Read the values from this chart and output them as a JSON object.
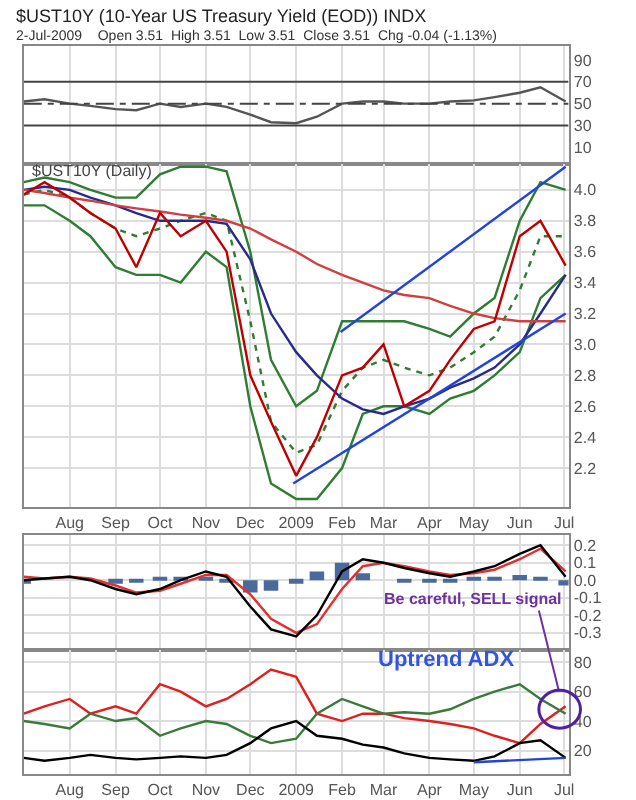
{
  "chart_data": [
    {
      "type": "line",
      "title": "$UST10Y (10-Year US Treasury Yield (EOD)) INDX",
      "subtitle": "2-Jul-2009    Open 3.51  High 3.51  Low 3.51  Close 3.51  Chg -0.04 (-1.13%)",
      "x": [
        "2008-07-01",
        "2008-07-15",
        "2008-08-01",
        "2008-08-15",
        "2008-09-01",
        "2008-09-15",
        "2008-10-01",
        "2008-10-15",
        "2008-11-01",
        "2008-11-15",
        "2008-12-01",
        "2008-12-15",
        "2009-01-01",
        "2009-01-15",
        "2009-02-01",
        "2009-02-15",
        "2009-03-01",
        "2009-03-15",
        "2009-04-01",
        "2009-04-15",
        "2009-05-01",
        "2009-05-15",
        "2009-06-01",
        "2009-06-15",
        "2009-07-02"
      ],
      "series": [
        {
          "color": "#555555",
          "values": [
            52,
            54,
            50,
            48,
            45,
            44,
            50,
            47,
            50,
            47,
            40,
            33,
            32,
            38,
            50,
            52,
            52,
            50,
            50,
            52,
            53,
            56,
            60,
            65,
            52
          ]
        }
      ],
      "xlim": [
        "2008-07-01",
        "2009-07-04"
      ],
      "xticks": [
        {
          "value": "2008-08-01",
          "label": null
        },
        {
          "value": "2008-09-01",
          "label": null
        },
        {
          "value": "2008-10-01",
          "label": null
        },
        {
          "value": "2008-11-01",
          "label": null
        },
        {
          "value": "2008-12-01",
          "label": null
        },
        {
          "value": "2009-01-01",
          "label": null
        },
        {
          "value": "2009-02-01",
          "label": null
        },
        {
          "value": "2009-03-01",
          "label": null
        },
        {
          "value": "2009-04-01",
          "label": null
        },
        {
          "value": "2009-05-01",
          "label": null
        },
        {
          "value": "2009-06-01",
          "label": null
        },
        {
          "value": "2009-07-01",
          "label": null
        }
      ],
      "ylim": [
        -5,
        103
      ],
      "yticks": [
        10,
        30,
        50,
        70,
        90
      ],
      "ref_lines": [
        {
          "axis": "y",
          "value": 70,
          "color": "#444444"
        },
        {
          "axis": "y",
          "value": 30,
          "color": "#444444"
        },
        {
          "axis": "y",
          "value": 50,
          "color": "#444444",
          "line_style": "dashed"
        }
      ],
      "tick_labels": "y",
      "grid": "x"
    },
    {
      "type": "line",
      "annotations": [
        "$UST10Y (Daily)"
      ],
      "x": [
        "2008-07-01",
        "2008-07-15",
        "2008-08-01",
        "2008-08-15",
        "2008-09-01",
        "2008-09-15",
        "2008-10-01",
        "2008-10-15",
        "2008-11-01",
        "2008-11-15",
        "2008-12-01",
        "2008-12-15",
        "2009-01-01",
        "2009-01-15",
        "2009-02-01",
        "2009-02-15",
        "2009-03-01",
        "2009-03-15",
        "2009-04-01",
        "2009-04-15",
        "2009-05-01",
        "2009-05-15",
        "2009-06-01",
        "2009-06-15",
        "2009-07-02"
      ],
      "series": [
        {
          "color": "#2e7d32",
          "values": [
            4.05,
            4.08,
            4.05,
            4.0,
            3.95,
            3.95,
            4.1,
            4.15,
            4.15,
            4.12,
            3.6,
            2.9,
            2.6,
            2.7,
            3.15,
            3.15,
            3.15,
            3.15,
            3.1,
            3.05,
            3.2,
            3.3,
            3.8,
            4.05,
            4.0
          ]
        },
        {
          "color": "#2e7d32",
          "values": [
            3.9,
            3.9,
            3.8,
            3.7,
            3.5,
            3.45,
            3.45,
            3.4,
            3.6,
            3.5,
            2.6,
            2.1,
            2.0,
            2.0,
            2.2,
            2.55,
            2.6,
            2.6,
            2.55,
            2.65,
            2.7,
            2.8,
            2.95,
            3.3,
            3.45
          ]
        },
        {
          "color": "#2e7d32",
          "line_style": "dotted",
          "values": [
            3.97,
            4.0,
            3.95,
            3.85,
            3.75,
            3.7,
            3.75,
            3.8,
            3.85,
            3.8,
            3.15,
            2.5,
            2.3,
            2.35,
            2.7,
            2.85,
            2.9,
            2.85,
            2.8,
            2.85,
            2.95,
            3.05,
            3.35,
            3.7,
            3.7
          ]
        },
        {
          "color": "#2a2a8c",
          "values": [
            4.0,
            4.02,
            4.0,
            3.95,
            3.9,
            3.85,
            3.8,
            3.8,
            3.8,
            3.78,
            3.55,
            3.2,
            2.95,
            2.8,
            2.65,
            2.58,
            2.55,
            2.6,
            2.65,
            2.72,
            2.78,
            2.85,
            3.0,
            3.2,
            3.45
          ]
        },
        {
          "color": "#d04040",
          "values": [
            4.0,
            3.98,
            3.95,
            3.93,
            3.9,
            3.88,
            3.86,
            3.84,
            3.82,
            3.8,
            3.75,
            3.68,
            3.6,
            3.52,
            3.45,
            3.4,
            3.35,
            3.32,
            3.3,
            3.25,
            3.2,
            3.17,
            3.15,
            3.15,
            3.15
          ]
        },
        {
          "color": "#c00000",
          "values": [
            3.97,
            4.05,
            3.95,
            3.85,
            3.75,
            3.5,
            3.85,
            3.7,
            3.8,
            3.6,
            2.8,
            2.5,
            2.15,
            2.4,
            2.8,
            2.85,
            3.0,
            2.6,
            2.7,
            2.9,
            3.1,
            3.15,
            3.7,
            3.8,
            3.51
          ]
        },
        {
          "color": "#2244dd",
          "x": [
            "2009-01-31",
            "2009-07-02"
          ],
          "values": [
            3.08,
            4.15
          ]
        },
        {
          "color": "#2244dd",
          "x": [
            "2008-12-30",
            "2009-07-02"
          ],
          "values": [
            2.1,
            3.2
          ]
        }
      ],
      "xlim": [
        "2008-07-01",
        "2009-07-04"
      ],
      "xticks": [
        {
          "value": "2008-08-01",
          "label": "Aug"
        },
        {
          "value": "2008-09-01",
          "label": "Sep"
        },
        {
          "value": "2008-10-01",
          "label": "Oct"
        },
        {
          "value": "2008-11-01",
          "label": "Nov"
        },
        {
          "value": "2008-12-01",
          "label": "Dec"
        },
        {
          "value": "2009-01-01",
          "label": "2009"
        },
        {
          "value": "2009-02-01",
          "label": "Feb"
        },
        {
          "value": "2009-03-01",
          "label": "Mar"
        },
        {
          "value": "2009-04-01",
          "label": "Apr"
        },
        {
          "value": "2009-05-01",
          "label": "May"
        },
        {
          "value": "2009-06-01",
          "label": "Jun"
        },
        {
          "value": "2009-07-01",
          "label": "Jul"
        }
      ],
      "ylim": [
        1.95,
        4.17
      ],
      "yticks": [
        2.2,
        2.4,
        2.6,
        2.8,
        {
          "value": 3,
          "label": "3.0"
        },
        3.2,
        3.4,
        3.6,
        3.8,
        {
          "value": 4,
          "label": "4.0"
        }
      ],
      "grid": true
    },
    {
      "type": "line",
      "x": [
        "2008-07-01",
        "2008-07-15",
        "2008-08-01",
        "2008-08-15",
        "2008-09-01",
        "2008-09-15",
        "2008-10-01",
        "2008-10-15",
        "2008-11-01",
        "2008-11-15",
        "2008-12-01",
        "2008-12-15",
        "2009-01-01",
        "2009-01-15",
        "2009-02-01",
        "2009-02-15",
        "2009-03-01",
        "2009-03-15",
        "2009-04-01",
        "2009-04-15",
        "2009-05-01",
        "2009-05-15",
        "2009-06-01",
        "2009-06-15",
        "2009-07-02"
      ],
      "series": [
        {
          "type": "bar",
          "color": "#4a6a9c",
          "values": [
            -0.02,
            0.0,
            0.0,
            null,
            -0.02,
            -0.01,
            0.01,
            0.02,
            0.02,
            -0.01,
            -0.07,
            -0.06,
            -0.02,
            0.05,
            0.1,
            0.04,
            0.0,
            -0.01,
            -0.01,
            -0.01,
            0.01,
            0.02,
            0.03,
            0.02,
            -0.03
          ]
        },
        {
          "color": "#e03030",
          "values": [
            0.02,
            0.01,
            0.02,
            0.01,
            -0.03,
            -0.07,
            -0.06,
            -0.02,
            0.03,
            0.03,
            -0.08,
            -0.22,
            -0.3,
            -0.25,
            -0.05,
            0.08,
            0.1,
            0.08,
            0.05,
            0.03,
            0.04,
            0.06,
            0.12,
            0.18,
            0.05
          ]
        },
        {
          "color": "#000000",
          "values": [
            0.0,
            0.01,
            0.02,
            0.0,
            -0.05,
            -0.08,
            -0.05,
            0.0,
            0.05,
            0.02,
            -0.15,
            -0.28,
            -0.32,
            -0.2,
            0.05,
            0.12,
            0.1,
            0.07,
            0.04,
            0.02,
            0.05,
            0.08,
            0.15,
            0.2,
            0.02
          ]
        }
      ],
      "xlim": [
        "2008-07-01",
        "2009-07-04"
      ],
      "xticks": [
        {
          "value": "2008-08-01",
          "label": null
        },
        {
          "value": "2008-09-01",
          "label": null
        },
        {
          "value": "2008-10-01",
          "label": null
        },
        {
          "value": "2008-11-01",
          "label": null
        },
        {
          "value": "2008-12-01",
          "label": null
        },
        {
          "value": "2009-01-01",
          "label": null
        },
        {
          "value": "2009-02-01",
          "label": null
        },
        {
          "value": "2009-03-01",
          "label": null
        },
        {
          "value": "2009-04-01",
          "label": null
        },
        {
          "value": "2009-05-01",
          "label": null
        },
        {
          "value": "2009-06-01",
          "label": null
        },
        {
          "value": "2009-07-01",
          "label": null
        }
      ],
      "ylim": [
        -0.4,
        0.26
      ],
      "yticks": [
        -0.3,
        -0.2,
        -0.1,
        {
          "value": 0,
          "label": "0.0"
        },
        0.1,
        0.2
      ],
      "tick_labels": "y",
      "grid": true
    },
    {
      "type": "line",
      "annotations": [
        "Be careful, SELL signal",
        "Uptrend ADX"
      ],
      "x": [
        "2008-07-01",
        "2008-07-15",
        "2008-08-01",
        "2008-08-15",
        "2008-09-01",
        "2008-09-15",
        "2008-10-01",
        "2008-10-15",
        "2008-11-01",
        "2008-11-15",
        "2008-12-01",
        "2008-12-15",
        "2009-01-01",
        "2009-01-15",
        "2009-02-01",
        "2009-02-15",
        "2009-03-01",
        "2009-03-15",
        "2009-04-01",
        "2009-04-15",
        "2009-05-01",
        "2009-05-15",
        "2009-06-01",
        "2009-06-15",
        "2009-07-02"
      ],
      "series": [
        {
          "color": "#e02020",
          "values": [
            45,
            50,
            55,
            45,
            50,
            45,
            65,
            60,
            50,
            55,
            65,
            75,
            70,
            45,
            40,
            45,
            45,
            42,
            40,
            38,
            35,
            30,
            25,
            38,
            50
          ]
        },
        {
          "color": "#3a7a3a",
          "values": [
            40,
            38,
            35,
            45,
            40,
            42,
            30,
            35,
            40,
            38,
            30,
            25,
            28,
            45,
            55,
            50,
            45,
            46,
            45,
            48,
            55,
            60,
            65,
            55,
            45
          ]
        },
        {
          "color": "#000000",
          "values": [
            15,
            13,
            15,
            17,
            15,
            14,
            15,
            16,
            15,
            17,
            25,
            35,
            40,
            30,
            28,
            24,
            22,
            18,
            15,
            14,
            13,
            16,
            25,
            27,
            15
          ]
        },
        {
          "color": "#2244dd",
          "x": [
            "2009-05-01",
            "2009-07-02"
          ],
          "values": [
            12,
            15
          ]
        }
      ],
      "xlim": [
        "2008-07-01",
        "2009-07-04"
      ],
      "xticks": [
        {
          "value": "2008-08-01",
          "label": "Aug"
        },
        {
          "value": "2008-09-01",
          "label": "Sep"
        },
        {
          "value": "2008-10-01",
          "label": "Oct"
        },
        {
          "value": "2008-11-01",
          "label": "Nov"
        },
        {
          "value": "2008-12-01",
          "label": "Dec"
        },
        {
          "value": "2009-01-01",
          "label": "2009"
        },
        {
          "value": "2009-02-01",
          "label": "Feb"
        },
        {
          "value": "2009-03-01",
          "label": "Mar"
        },
        {
          "value": "2009-04-01",
          "label": "Apr"
        },
        {
          "value": "2009-05-01",
          "label": "May"
        },
        {
          "value": "2009-06-01",
          "label": "Jun"
        },
        {
          "value": "2009-07-01",
          "label": "Jul"
        }
      ],
      "ylim": [
        4,
        88
      ],
      "yticks": [
        20,
        40,
        60,
        80
      ],
      "grid": true
    }
  ]
}
